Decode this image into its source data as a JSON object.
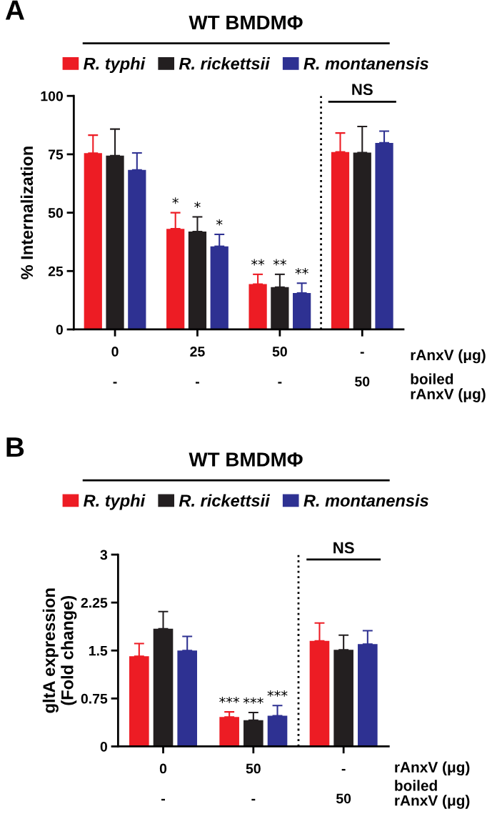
{
  "chart_data": [
    {
      "type": "bar",
      "title": "WT BMDMΦ",
      "ylabel": "% Internalization",
      "categories": [
        "0\n\n-",
        "25\n\n-",
        "50\n\n-",
        "-\n\n50"
      ],
      "series": [
        {
          "name": "R. typhi",
          "color": "#ed1c24",
          "values": [
            75.5,
            43.1,
            19.4,
            76
          ],
          "errors": [
            7.7,
            6.9,
            4.2,
            8.1
          ],
          "value_labels": [
            null,
            "*",
            "**",
            null
          ]
        },
        {
          "name": "R. rickettsii",
          "color": "#231f20",
          "values": [
            74.4,
            41.9,
            18.1,
            75.7
          ],
          "errors": [
            11.4,
            6.3,
            5.5,
            11.2
          ],
          "value_labels": [
            null,
            "*",
            "**",
            null
          ]
        },
        {
          "name": "R. montanensis",
          "color": "#2e3192",
          "values": [
            68.3,
            35.6,
            15.6,
            79.9
          ],
          "errors": [
            7.3,
            5.1,
            4.2,
            5
          ],
          "value_labels": [
            null,
            "*",
            "**",
            null
          ]
        }
      ],
      "ylim": [
        0,
        100
      ],
      "yticks": [
        0,
        25,
        50,
        75,
        100
      ],
      "legend": "top",
      "annotations": [
        "A",
        "NS",
        "rAnxV (μg)",
        "boiled\nrAnxV (μg)"
      ]
    },
    {
      "type": "bar",
      "title": "WT BMDMΦ",
      "ylabel": "gltA expression\n(Fold change)",
      "categories": [
        "0\n\n-",
        "50\n\n-",
        "-\n\n50"
      ],
      "series": [
        {
          "name": "R. typhi",
          "color": "#ed1c24",
          "values": [
            1.41,
            0.46,
            1.65
          ],
          "errors": [
            0.2,
            0.08,
            0.28
          ],
          "value_labels": [
            null,
            "***",
            null
          ]
        },
        {
          "name": "R. rickettsii",
          "color": "#231f20",
          "values": [
            1.84,
            0.41,
            1.51
          ],
          "errors": [
            0.27,
            0.12,
            0.23
          ],
          "value_labels": [
            null,
            "***",
            null
          ]
        },
        {
          "name": "R. montanensis",
          "color": "#2e3192",
          "values": [
            1.5,
            0.48,
            1.6
          ],
          "errors": [
            0.22,
            0.16,
            0.21
          ],
          "value_labels": [
            null,
            "***",
            null
          ]
        }
      ],
      "ylim": [
        0,
        3
      ],
      "yticks": [
        0,
        0.75,
        1.5,
        2.25,
        3
      ],
      "legend": "top",
      "annotations": [
        "B",
        "NS",
        "rAnxV (μg)",
        "boiled\nrAnxV (μg)"
      ]
    }
  ]
}
